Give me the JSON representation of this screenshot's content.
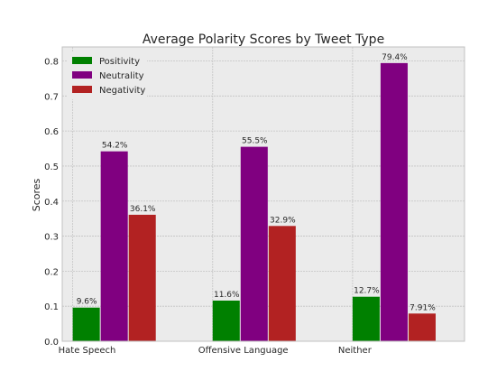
{
  "chart_data": {
    "type": "bar",
    "title": "Average Polarity Scores by Tweet Type",
    "xlabel": "",
    "ylabel": "Scores",
    "categories": [
      "Hate Speech",
      "Offensive Language",
      "Neither"
    ],
    "series": [
      {
        "name": "Positivity",
        "color": "#008000",
        "values": [
          0.096,
          0.116,
          0.127
        ],
        "labels": [
          "9.6%",
          "11.6%",
          "12.7%"
        ]
      },
      {
        "name": "Neutrality",
        "color": "#800080",
        "values": [
          0.542,
          0.555,
          0.794
        ],
        "labels": [
          "54.2%",
          "55.5%",
          "79.4%"
        ]
      },
      {
        "name": "Negativity",
        "color": "#b22222",
        "values": [
          0.361,
          0.329,
          0.0791
        ],
        "labels": [
          "36.1%",
          "32.9%",
          "7.91%"
        ]
      }
    ],
    "ylim": [
      0,
      0.84
    ],
    "yticks": [
      "0.0",
      "0.1",
      "0.2",
      "0.3",
      "0.4",
      "0.5",
      "0.6",
      "0.7",
      "0.8"
    ],
    "grid": true,
    "legend": "top-left",
    "background": "#ebebeb"
  }
}
